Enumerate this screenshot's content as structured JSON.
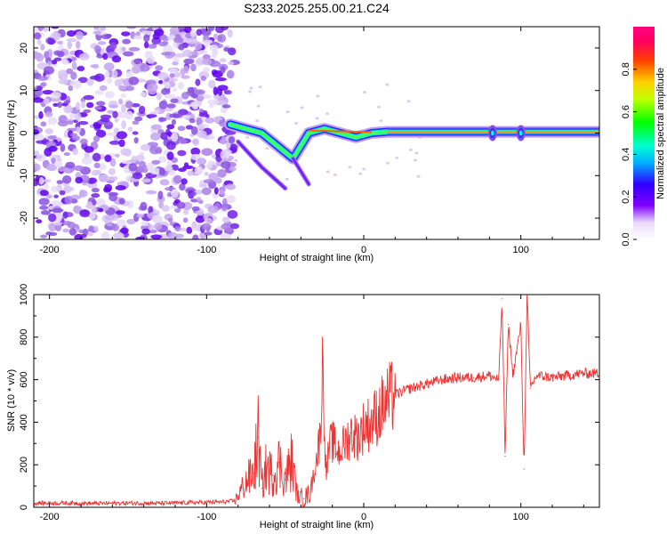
{
  "title": "S233.2025.255.00.21.C24",
  "chart_data": [
    {
      "type": "heatmap",
      "xlabel": "Height of straight line (km)",
      "ylabel": "Frequency (Hz)",
      "xlim": [
        -210,
        150
      ],
      "ylim": [
        -25,
        25
      ],
      "xticks": [
        -200,
        -100,
        0,
        100
      ],
      "yticks": [
        -20,
        -10,
        0,
        10,
        20
      ],
      "colorbar": {
        "label": "Normalized spectral amplitude",
        "range": [
          0,
          1
        ],
        "ticks": [
          "0.0",
          "0.2",
          "0.4",
          "0.6",
          "0.8"
        ]
      },
      "noise_region_x": [
        -210,
        -82
      ],
      "features": [
        {
          "name": "signal-track",
          "x": [
            -85,
            -75,
            -65,
            -55,
            -45,
            -35,
            -25,
            -15,
            -5,
            5,
            15,
            150
          ],
          "y": [
            2,
            1,
            0,
            -3,
            -6,
            0,
            1,
            0,
            -1,
            0,
            0.3,
            0.3
          ]
        },
        {
          "name": "mode-branch",
          "x": [
            -80,
            -65,
            -50
          ],
          "y": [
            -2,
            -8,
            -13
          ]
        },
        {
          "name": "mode-branch-2",
          "x": [
            -45,
            -35
          ],
          "y": [
            -6,
            -12
          ]
        },
        {
          "name": "spike",
          "x": [
            82
          ],
          "y": [
            0
          ]
        },
        {
          "name": "spike",
          "x": [
            100
          ],
          "y": [
            0
          ]
        }
      ]
    },
    {
      "type": "line",
      "xlabel": "Height of straight line (km)",
      "ylabel": "SNR (10 * v/v)",
      "xlim": [
        -210,
        150
      ],
      "ylim": [
        0,
        1000
      ],
      "xticks": [
        -200,
        -100,
        0,
        100
      ],
      "yticks": [
        0,
        200,
        400,
        600,
        800,
        1000
      ],
      "series": [
        {
          "name": "SNR",
          "color": "#ee3333",
          "x": [
            -210,
            -190,
            -170,
            -150,
            -130,
            -110,
            -90,
            -82,
            -75,
            -70,
            -67,
            -65,
            -62,
            -58,
            -54,
            -50,
            -46,
            -42,
            -38,
            -34,
            -30,
            -28,
            -26,
            -24,
            -22,
            -20,
            -16,
            -12,
            -8,
            -4,
            0,
            5,
            10,
            15,
            20,
            30,
            40,
            50,
            60,
            70,
            80,
            86,
            88,
            90,
            92,
            95,
            100,
            102,
            104,
            106,
            110,
            120,
            130,
            140,
            150
          ],
          "values": [
            20,
            20,
            18,
            20,
            19,
            22,
            25,
            30,
            120,
            160,
            330,
            90,
            190,
            150,
            210,
            130,
            220,
            50,
            40,
            70,
            230,
            320,
            680,
            150,
            280,
            310,
            260,
            300,
            350,
            330,
            380,
            400,
            450,
            500,
            530,
            560,
            580,
            600,
            610,
            610,
            620,
            600,
            980,
            240,
            860,
            620,
            860,
            180,
            1000,
            560,
            620,
            610,
            620,
            630,
            630
          ]
        }
      ]
    }
  ]
}
